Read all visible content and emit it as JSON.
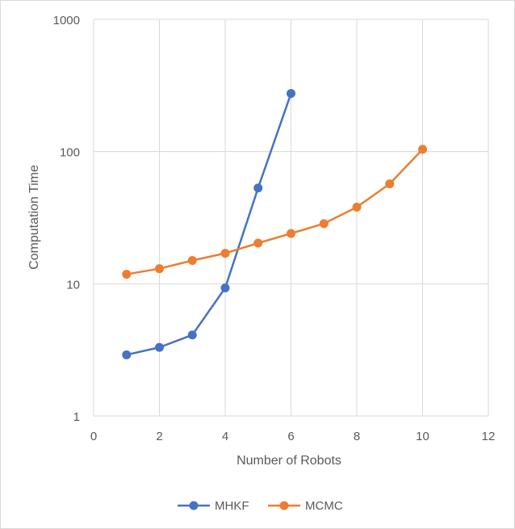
{
  "chart_data": {
    "type": "scatter",
    "title": "",
    "xlabel": "Number of Robots",
    "ylabel": "Computation Time",
    "xlim": [
      0,
      12
    ],
    "ylim": [
      1,
      1000
    ],
    "yscale": "log",
    "grid": true,
    "legend_position": "bottom",
    "x_ticks": [
      "0",
      "2",
      "4",
      "6",
      "8",
      "10",
      "12"
    ],
    "y_ticks": [
      "1",
      "10",
      "100",
      "1000"
    ],
    "series": [
      {
        "name": "MHKF",
        "color": "#4472c4",
        "x": [
          1,
          2,
          3,
          4,
          5,
          6
        ],
        "y": [
          2.9,
          3.3,
          4.1,
          9.3,
          53,
          275
        ]
      },
      {
        "name": "MCMC",
        "color": "#ed7d31",
        "x": [
          1,
          2,
          3,
          4,
          5,
          6,
          7,
          8,
          9,
          10
        ],
        "y": [
          11.8,
          13,
          15,
          17,
          20.3,
          24,
          28.5,
          38,
          57,
          104
        ]
      }
    ]
  }
}
